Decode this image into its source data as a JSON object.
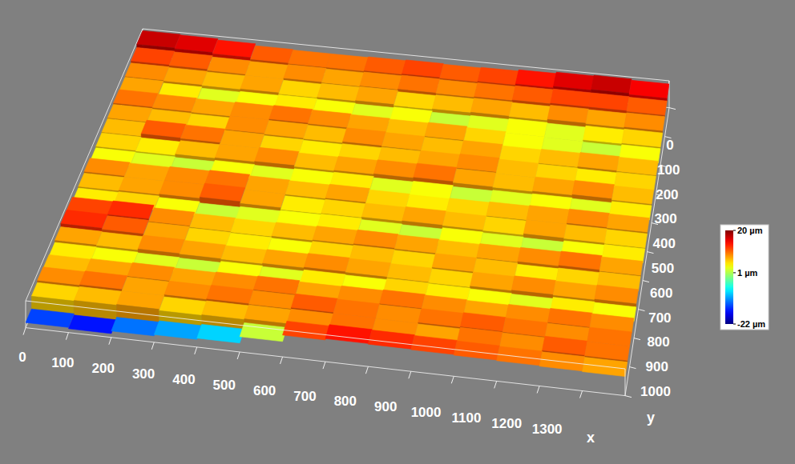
{
  "chart_data": {
    "type": "surface",
    "x_label": "x",
    "y_label": "y",
    "x": [
      50,
      150,
      250,
      350,
      450,
      550,
      650,
      750,
      850,
      950,
      1050,
      1150,
      1250,
      1350
    ],
    "y": [
      25,
      75,
      125,
      175,
      225,
      275,
      325,
      375,
      425,
      475,
      525,
      575,
      625,
      675,
      725,
      775,
      825,
      875,
      925,
      975
    ],
    "z": [
      [
        17,
        16,
        14,
        11,
        10,
        10,
        11,
        12,
        11,
        12,
        14,
        16,
        17,
        15
      ],
      [
        12,
        11,
        9,
        8,
        9,
        8,
        9,
        10,
        9,
        10,
        11,
        12,
        12,
        11
      ],
      [
        9,
        8,
        7,
        8,
        6,
        7,
        8,
        6,
        7,
        8,
        7,
        9,
        8,
        9
      ],
      [
        8,
        5,
        3,
        4,
        5,
        4,
        3,
        4,
        2,
        3,
        4,
        3,
        5,
        6
      ],
      [
        10,
        9,
        8,
        9,
        10,
        9,
        8,
        7,
        8,
        6,
        4,
        3,
        2,
        4
      ],
      [
        8,
        7,
        6,
        9,
        8,
        7,
        9,
        8,
        7,
        8,
        6,
        7,
        8,
        7
      ],
      [
        7,
        11,
        10,
        8,
        6,
        5,
        6,
        7,
        8,
        9,
        7,
        6,
        5,
        6
      ],
      [
        6,
        5,
        7,
        8,
        9,
        7,
        8,
        9,
        10,
        8,
        7,
        8,
        9,
        7
      ],
      [
        4,
        3,
        2,
        4,
        3,
        4,
        5,
        3,
        4,
        2,
        3,
        4,
        3,
        5
      ],
      [
        9,
        8,
        9,
        10,
        8,
        7,
        8,
        6,
        5,
        6,
        7,
        8,
        9,
        8
      ],
      [
        7,
        8,
        9,
        11,
        8,
        5,
        6,
        7,
        8,
        7,
        6,
        8,
        7,
        6
      ],
      [
        5,
        6,
        4,
        2,
        3,
        4,
        5,
        3,
        2,
        4,
        3,
        2,
        4,
        5
      ],
      [
        12,
        13,
        9,
        7,
        6,
        7,
        8,
        9,
        8,
        7,
        8,
        9,
        10,
        8
      ],
      [
        13,
        11,
        8,
        6,
        5,
        4,
        6,
        7,
        6,
        8,
        7,
        5,
        6,
        7
      ],
      [
        8,
        7,
        9,
        8,
        7,
        8,
        9,
        8,
        7,
        6,
        8,
        9,
        8,
        9
      ],
      [
        5,
        4,
        3,
        2,
        4,
        3,
        5,
        4,
        6,
        5,
        4,
        3,
        5,
        4
      ],
      [
        7,
        8,
        9,
        8,
        9,
        10,
        8,
        9,
        10,
        9,
        8,
        9,
        10,
        9
      ],
      [
        9,
        10,
        8,
        9,
        10,
        9,
        11,
        10,
        9,
        10,
        11,
        10,
        9,
        10
      ],
      [
        6,
        7,
        8,
        6,
        7,
        8,
        9,
        10,
        9,
        8,
        10,
        9,
        11,
        10
      ],
      [
        -14,
        -16,
        -12,
        -10,
        -8,
        2,
        12,
        14,
        13,
        12,
        11,
        10,
        9,
        8
      ]
    ],
    "xlim": [
      0,
      1400
    ],
    "ylim": [
      0,
      1000
    ],
    "xticks": [
      0,
      100,
      200,
      300,
      400,
      500,
      600,
      700,
      800,
      900,
      1000,
      1100,
      1200,
      1300
    ],
    "yticks": [
      0,
      100,
      200,
      300,
      400,
      500,
      600,
      700,
      800,
      900,
      1000
    ],
    "colorbar_range": [
      -22,
      20
    ],
    "colorbar_ticks": [
      {
        "value": 20,
        "label": "20 µm"
      },
      {
        "value": 1,
        "label": "1 µm"
      },
      {
        "value": -22,
        "label": "-22 µm"
      }
    ]
  }
}
